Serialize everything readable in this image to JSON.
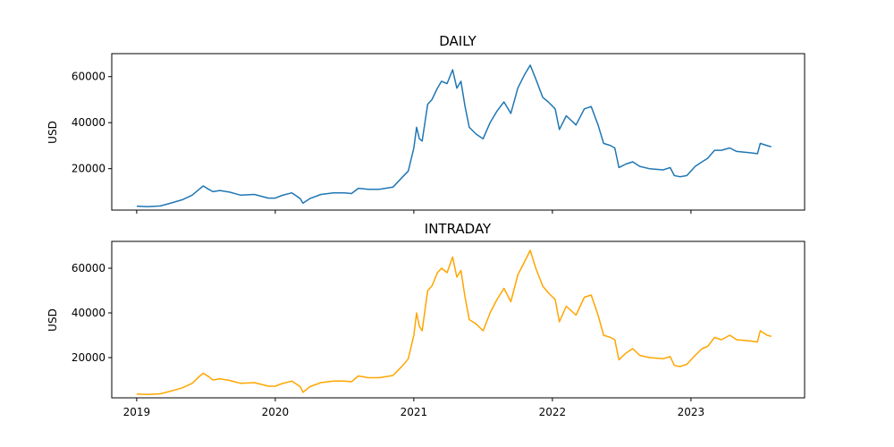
{
  "chart_data": [
    {
      "type": "line",
      "title": "DAILY",
      "ylabel": "USD",
      "xlabel": "",
      "ylim": [
        2000,
        70000
      ],
      "yticks": [
        20000,
        40000,
        60000
      ],
      "xlim": [
        2018.82,
        2023.82
      ],
      "xticks": [
        2019,
        2020,
        2021,
        2022,
        2023
      ],
      "show_x_tick_labels": false,
      "color": "#1f77b4",
      "series": [
        {
          "x": [
            2019.0,
            2019.08,
            2019.17,
            2019.25,
            2019.33,
            2019.4,
            2019.45,
            2019.48,
            2019.52,
            2019.55,
            2019.6,
            2019.67,
            2019.75,
            2019.85,
            2019.95,
            2020.0,
            2020.05,
            2020.12,
            2020.18,
            2020.2,
            2020.25,
            2020.33,
            2020.42,
            2020.5,
            2020.55,
            2020.6,
            2020.67,
            2020.75,
            2020.85,
            2020.92,
            2020.96,
            2021.0,
            2021.02,
            2021.04,
            2021.06,
            2021.1,
            2021.13,
            2021.17,
            2021.2,
            2021.24,
            2021.28,
            2021.31,
            2021.34,
            2021.37,
            2021.4,
            2021.45,
            2021.5,
            2021.55,
            2021.6,
            2021.65,
            2021.7,
            2021.75,
            2021.8,
            2021.84,
            2021.88,
            2021.93,
            2021.97,
            2022.02,
            2022.05,
            2022.1,
            2022.17,
            2022.23,
            2022.28,
            2022.33,
            2022.37,
            2022.42,
            2022.45,
            2022.48,
            2022.53,
            2022.58,
            2022.63,
            2022.7,
            2022.8,
            2022.85,
            2022.88,
            2022.92,
            2022.97,
            2023.03,
            2023.08,
            2023.12,
            2023.17,
            2023.22,
            2023.28,
            2023.33,
            2023.42,
            2023.48,
            2023.5,
            2023.55,
            2023.58
          ],
          "y": [
            3700,
            3500,
            3800,
            5100,
            6500,
            8500,
            11000,
            12500,
            11000,
            10000,
            10500,
            9800,
            8500,
            8800,
            7200,
            7200,
            8400,
            9500,
            7000,
            5000,
            7000,
            8800,
            9500,
            9500,
            9200,
            11500,
            11000,
            11000,
            12000,
            16500,
            19000,
            29000,
            38000,
            33000,
            32000,
            48000,
            50000,
            55000,
            58000,
            57000,
            63000,
            55000,
            58000,
            47000,
            38000,
            35000,
            33000,
            40000,
            45000,
            49000,
            44000,
            55000,
            61000,
            65000,
            59000,
            51000,
            49000,
            46000,
            37000,
            43000,
            39000,
            46000,
            47000,
            39000,
            31000,
            30000,
            29000,
            20500,
            22000,
            23000,
            21000,
            20000,
            19500,
            20500,
            17000,
            16500,
            17000,
            21000,
            23000,
            24500,
            28000,
            28000,
            29000,
            27500,
            27000,
            26500,
            31000,
            30000,
            29500
          ]
        }
      ]
    },
    {
      "type": "line",
      "title": "INTRADAY",
      "ylabel": "USD",
      "xlabel": "",
      "ylim": [
        2000,
        72000
      ],
      "yticks": [
        20000,
        40000,
        60000
      ],
      "xlim": [
        2018.82,
        2023.82
      ],
      "xticks": [
        2019,
        2020,
        2021,
        2022,
        2023
      ],
      "xticklabels": [
        "2019",
        "2020",
        "2021",
        "2022",
        "2023"
      ],
      "show_x_tick_labels": true,
      "color": "#ffa500",
      "series": [
        {
          "x": [
            2019.0,
            2019.08,
            2019.17,
            2019.25,
            2019.33,
            2019.4,
            2019.45,
            2019.48,
            2019.52,
            2019.55,
            2019.6,
            2019.67,
            2019.75,
            2019.85,
            2019.95,
            2020.0,
            2020.05,
            2020.12,
            2020.18,
            2020.2,
            2020.25,
            2020.33,
            2020.42,
            2020.5,
            2020.55,
            2020.6,
            2020.67,
            2020.75,
            2020.85,
            2020.92,
            2020.96,
            2021.0,
            2021.02,
            2021.04,
            2021.06,
            2021.1,
            2021.13,
            2021.17,
            2021.2,
            2021.24,
            2021.28,
            2021.31,
            2021.34,
            2021.37,
            2021.4,
            2021.45,
            2021.5,
            2021.55,
            2021.6,
            2021.65,
            2021.7,
            2021.75,
            2021.8,
            2021.84,
            2021.88,
            2021.93,
            2021.97,
            2022.02,
            2022.05,
            2022.1,
            2022.17,
            2022.23,
            2022.28,
            2022.33,
            2022.37,
            2022.42,
            2022.45,
            2022.48,
            2022.53,
            2022.58,
            2022.63,
            2022.7,
            2022.8,
            2022.85,
            2022.88,
            2022.92,
            2022.97,
            2023.03,
            2023.08,
            2023.12,
            2023.17,
            2023.22,
            2023.28,
            2023.33,
            2023.42,
            2023.48,
            2023.5,
            2023.55,
            2023.58
          ],
          "y": [
            3700,
            3500,
            3800,
            5100,
            6500,
            8500,
            11500,
            13000,
            11500,
            10000,
            10500,
            9800,
            8500,
            8800,
            7200,
            7200,
            8400,
            9500,
            7000,
            4500,
            7000,
            8800,
            9500,
            9500,
            9200,
            11800,
            11000,
            11000,
            12000,
            16500,
            19500,
            30000,
            40000,
            34000,
            32000,
            50000,
            52000,
            58000,
            60000,
            58000,
            65000,
            56000,
            59000,
            47000,
            37000,
            35000,
            32000,
            40000,
            46000,
            51000,
            45000,
            57000,
            63000,
            68000,
            60000,
            52000,
            49000,
            46000,
            36000,
            43000,
            39000,
            47000,
            48000,
            39000,
            30000,
            29000,
            28000,
            19000,
            22000,
            24000,
            21000,
            20000,
            19500,
            20500,
            16500,
            16000,
            17000,
            21000,
            24000,
            25000,
            29000,
            28000,
            30000,
            28000,
            27500,
            27000,
            32000,
            30000,
            29500
          ]
        }
      ]
    }
  ]
}
